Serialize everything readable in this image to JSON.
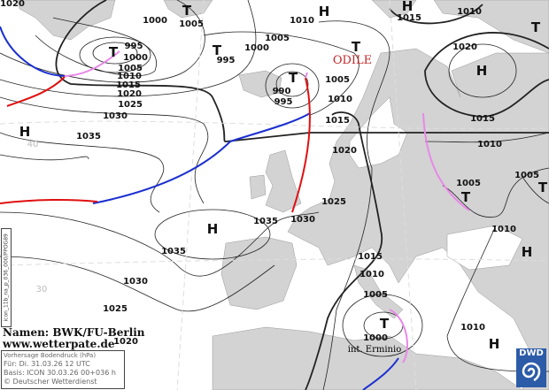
{
  "map": {
    "pressure_labels": [
      "1020",
      "1000",
      "1005",
      "995",
      "1000",
      "1005",
      "1010",
      "1015",
      "1020",
      "1025",
      "1030",
      "1035",
      "995",
      "1000",
      "1005",
      "1010",
      "1015",
      "1010",
      "990",
      "995",
      "1005",
      "1010",
      "1015",
      "1020",
      "1020",
      "1015",
      "1010",
      "1005",
      "1005",
      "1025",
      "1030",
      "1035",
      "1035",
      "1030",
      "1025",
      "1010",
      "1015",
      "1010",
      "1005",
      "1000",
      "1010",
      "1020"
    ],
    "centers": [
      "T",
      "T",
      "H",
      "T",
      "H",
      "H",
      "T",
      "T",
      "T",
      "H",
      "T",
      "T",
      "H",
      "H",
      "T",
      "H"
    ],
    "storm_names": {
      "odile": "ODILE",
      "erminio": "int. Erminio"
    },
    "grid_labels": [
      "40",
      "30"
    ],
    "colors": {
      "land": "#d3d3d3",
      "sea": "#ffffff",
      "cold_front": "#1a2fd0",
      "warm_front": "#e01010",
      "occlusion": "#e888e8",
      "storm_name": "#c0282a"
    }
  },
  "credit": {
    "line1": "Namen: BWK/FU-Berlin",
    "line2": "www.wetterpate.de"
  },
  "info": {
    "title": "Vorhersage Bodendruck (hPa)",
    "valid": "Für:  Di. 31.03.26  12 UTC",
    "base": "Basis: ICON  30.03.26 00+036 h",
    "copyright": "© Deutscher Wetterdienst"
  },
  "model_code": "icon_11b_na_p_036_000/PPOG89",
  "logo": {
    "text": "DWD",
    "icon": "swirl-icon"
  }
}
